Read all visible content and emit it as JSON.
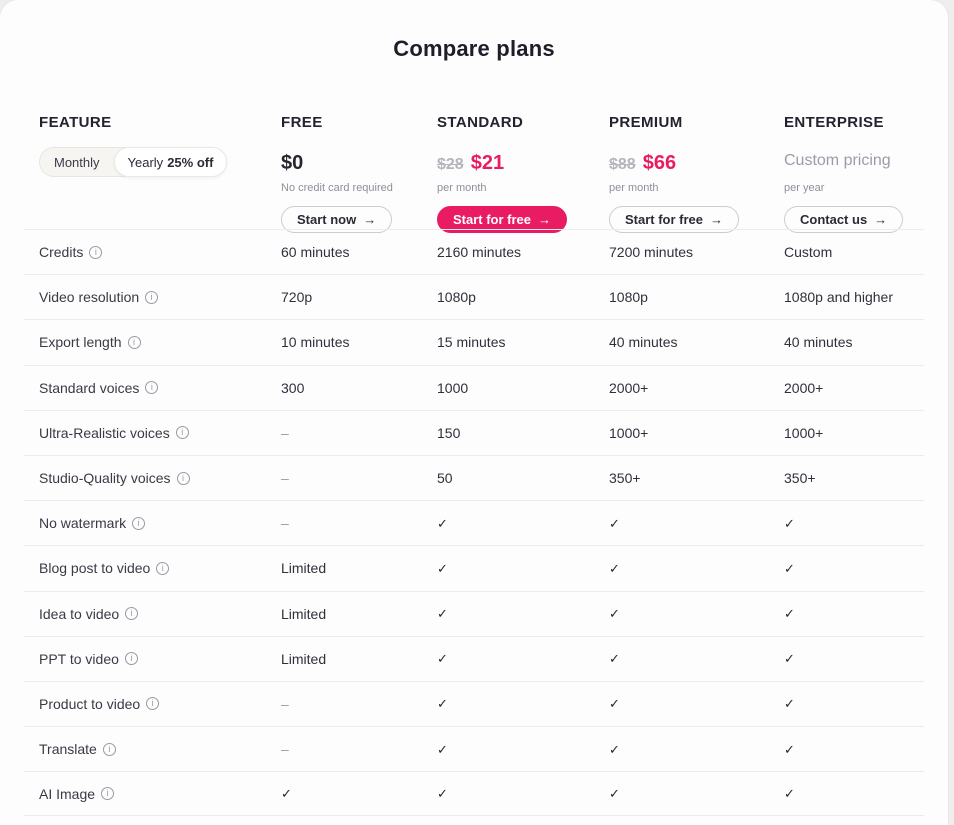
{
  "page": {
    "title": "Compare plans"
  },
  "colors": {
    "accent_pink": "#e91c63",
    "card_background": "#fdfdfd",
    "page_background": "#efeeec",
    "divider": "#ececec",
    "muted_text": "#8f8f9b"
  },
  "feature_header": {
    "label": "FEATURE"
  },
  "billing_toggle": {
    "monthly_label": "Monthly",
    "yearly_label": "Yearly",
    "yearly_badge": "25% off",
    "selected": "Yearly"
  },
  "plans": [
    {
      "name": "FREE",
      "price": "$0",
      "note": "No credit card required",
      "button": "Start now"
    },
    {
      "name": "STANDARD",
      "old_price": "$28",
      "price": "$21",
      "note": "per month",
      "button": "Start for free"
    },
    {
      "name": "PREMIUM",
      "old_price": "$88",
      "price": "$66",
      "note": "per month",
      "button": "Start for free"
    },
    {
      "name": "ENTERPRISE",
      "price": "Custom pricing",
      "note": "per year",
      "button": "Contact us"
    }
  ],
  "icons": {
    "arrow_right": "→",
    "info": "i",
    "check": "✓",
    "dash": "–"
  },
  "table": {
    "rows": [
      {
        "feature": "Credits",
        "values": [
          "60 minutes",
          "2160 minutes",
          "7200 minutes",
          "Custom"
        ]
      },
      {
        "feature": "Video resolution",
        "values": [
          "720p",
          "1080p",
          "1080p",
          "1080p and higher"
        ]
      },
      {
        "feature": "Export length",
        "values": [
          "10 minutes",
          "15 minutes",
          "40 minutes",
          "40 minutes"
        ]
      },
      {
        "feature": "Standard voices",
        "values": [
          "300",
          "1000",
          "2000+",
          "2000+"
        ]
      },
      {
        "feature": "Ultra-Realistic voices",
        "values": [
          "dash",
          "150",
          "1000+",
          "1000+"
        ]
      },
      {
        "feature": "Studio-Quality voices",
        "values": [
          "dash",
          "50",
          "350+",
          "350+"
        ]
      },
      {
        "feature": "No watermark",
        "values": [
          "dash",
          "check",
          "check",
          "check"
        ]
      },
      {
        "feature": "Blog post to video",
        "values": [
          "Limited",
          "check",
          "check",
          "check"
        ]
      },
      {
        "feature": "Idea to video",
        "values": [
          "Limited",
          "check",
          "check",
          "check"
        ]
      },
      {
        "feature": "PPT to video",
        "values": [
          "Limited",
          "check",
          "check",
          "check"
        ]
      },
      {
        "feature": "Product to video",
        "values": [
          "dash",
          "check",
          "check",
          "check"
        ]
      },
      {
        "feature": "Translate",
        "values": [
          "dash",
          "check",
          "check",
          "check"
        ]
      },
      {
        "feature": "AI Image",
        "values": [
          "check",
          "check",
          "check",
          "check"
        ]
      }
    ]
  }
}
